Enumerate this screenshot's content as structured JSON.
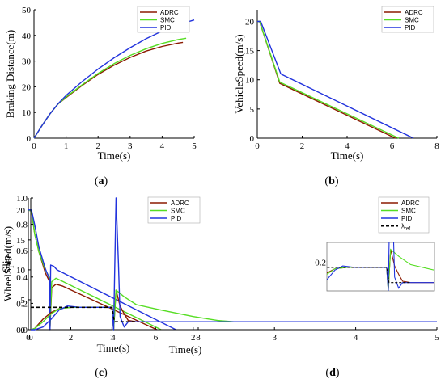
{
  "colors": {
    "ADRC": "#8b1a00",
    "SMC": "#55dd22",
    "PID": "#2233dd",
    "ref": "#000000"
  },
  "chart_data": [
    {
      "panel": "(a)",
      "type": "line",
      "xlabel": "Time(s)",
      "ylabel": "Braking Distance(m)",
      "xlim": [
        0,
        5
      ],
      "ylim": [
        0,
        50
      ],
      "xticks": [
        0,
        1,
        2,
        3,
        4,
        5
      ],
      "yticks": [
        0,
        10,
        20,
        30,
        40,
        50
      ],
      "legend": "top-right",
      "series": [
        {
          "name": "ADRC",
          "color": "#8b1a00",
          "x": [
            0,
            0.25,
            0.5,
            0.75,
            1.0,
            1.5,
            2.0,
            2.5,
            3.0,
            3.5,
            4.0,
            4.5,
            4.65
          ],
          "y": [
            0,
            4.9,
            9.5,
            13.3,
            15.8,
            20.5,
            24.8,
            28.4,
            31.4,
            33.9,
            35.7,
            37.0,
            37.3
          ]
        },
        {
          "name": "SMC",
          "color": "#55dd22",
          "x": [
            0,
            0.25,
            0.5,
            0.75,
            1.0,
            1.5,
            2.0,
            2.5,
            3.0,
            3.5,
            4.0,
            4.5,
            4.75
          ],
          "y": [
            0,
            4.9,
            9.5,
            13.3,
            16.0,
            20.8,
            25.2,
            29.0,
            32.2,
            34.8,
            36.9,
            38.4,
            38.9
          ]
        },
        {
          "name": "PID",
          "color": "#2233dd",
          "x": [
            0,
            0.25,
            0.5,
            0.75,
            1.0,
            1.5,
            2.0,
            2.5,
            3.0,
            3.5,
            4.0,
            4.5,
            5.0
          ],
          "y": [
            0,
            4.9,
            9.5,
            13.4,
            16.6,
            22.0,
            26.9,
            31.3,
            35.2,
            38.7,
            41.7,
            44.2,
            46.0
          ]
        }
      ]
    },
    {
      "panel": "(b)",
      "type": "line",
      "xlabel": "Time(s)",
      "ylabel": "VehicleSpeed(m/s)",
      "xlim": [
        0,
        8
      ],
      "ylim": [
        0,
        22
      ],
      "xticks": [
        0,
        2,
        4,
        6,
        8
      ],
      "yticks": [
        0,
        5,
        10,
        15,
        20
      ],
      "legend": "top-right",
      "series": [
        {
          "name": "ADRC",
          "color": "#8b1a00",
          "x": [
            0,
            0.1,
            1.0,
            6.15
          ],
          "y": [
            20,
            20,
            9.4,
            0
          ]
        },
        {
          "name": "SMC",
          "color": "#55dd22",
          "x": [
            0,
            0.1,
            1.0,
            6.3
          ],
          "y": [
            20,
            20,
            9.6,
            0
          ]
        },
        {
          "name": "PID",
          "color": "#2233dd",
          "x": [
            0,
            0.15,
            1.05,
            1.1,
            6.95
          ],
          "y": [
            20,
            20,
            11.0,
            10.9,
            0
          ]
        }
      ]
    },
    {
      "panel": "(c)",
      "type": "line",
      "xlabel": "Time(s)",
      "ylabel": "WheelSpeed(m/s)",
      "xlim": [
        0,
        8
      ],
      "ylim": [
        0,
        22
      ],
      "xticks": [
        0,
        2,
        4,
        6,
        8
      ],
      "yticks": [
        0,
        5,
        10,
        15,
        20
      ],
      "legend": "top-right",
      "series": [
        {
          "name": "ADRC",
          "color": "#8b1a00",
          "x": [
            0,
            0.15,
            0.3,
            0.5,
            0.8,
            1.0,
            1.02,
            1.1,
            1.3,
            1.6,
            6.05
          ],
          "y": [
            20,
            19.8,
            16,
            13,
            9.5,
            8.0,
            0.3,
            7.0,
            7.6,
            7.3,
            0
          ]
        },
        {
          "name": "SMC",
          "color": "#55dd22",
          "x": [
            0,
            0.15,
            0.3,
            0.5,
            0.8,
            1.0,
            1.02,
            1.1,
            1.3,
            1.6,
            6.25
          ],
          "y": [
            20,
            19.8,
            16,
            13,
            10,
            8.7,
            0.3,
            8.0,
            8.6,
            8.1,
            0
          ]
        },
        {
          "name": "PID",
          "color": "#2233dd",
          "x": [
            0,
            0.15,
            0.3,
            0.5,
            0.8,
            1.0,
            1.02,
            1.05,
            1.2,
            1.35,
            6.95
          ],
          "y": [
            20,
            20,
            17.5,
            13.8,
            10.2,
            8.4,
            0.0,
            10.8,
            10.6,
            10.0,
            0
          ]
        }
      ]
    },
    {
      "panel": "(d)",
      "type": "line",
      "xlabel": "Time(s)",
      "ylabel": "Slip",
      "xlim": [
        0,
        5
      ],
      "ylim": [
        0,
        1.0
      ],
      "xticks": [
        0,
        1,
        2,
        3,
        4,
        5
      ],
      "yticks": [
        0,
        0.2,
        0.4,
        0.6,
        0.8,
        1.0
      ],
      "legend": "top-right",
      "inset_tick": "0.2",
      "series": [
        {
          "name": "ADRC",
          "color": "#8b1a00",
          "x": [
            0,
            0.05,
            0.15,
            0.25,
            0.35,
            0.5,
            1.0,
            1.02,
            1.05,
            1.1,
            1.15,
            1.2,
            1.3,
            1.5,
            2.0,
            5.0
          ],
          "y": [
            0,
            0.01,
            0.08,
            0.13,
            0.16,
            0.17,
            0.17,
            0.0,
            0.3,
            0.18,
            0.12,
            0.07,
            0.06,
            0.06,
            0.06,
            0.06
          ]
        },
        {
          "name": "SMC",
          "color": "#55dd22",
          "x": [
            0,
            0.05,
            0.15,
            0.25,
            0.35,
            0.5,
            1.0,
            1.02,
            1.05,
            1.15,
            1.3,
            1.6,
            2.0,
            2.3,
            2.5,
            5.0
          ],
          "y": [
            0,
            0.01,
            0.06,
            0.12,
            0.16,
            0.17,
            0.17,
            0.0,
            0.3,
            0.25,
            0.19,
            0.15,
            0.1,
            0.07,
            0.06,
            0.06
          ]
        },
        {
          "name": "PID",
          "color": "#2233dd",
          "x": [
            0,
            0.05,
            0.15,
            0.25,
            0.35,
            0.45,
            0.6,
            1.0,
            1.02,
            1.05,
            1.08,
            1.1,
            1.15,
            1.2,
            1.3,
            1.5,
            5.0
          ],
          "y": [
            0,
            0.0,
            0.02,
            0.08,
            0.15,
            0.18,
            0.17,
            0.17,
            0.0,
            1.0,
            0.5,
            0.1,
            0.02,
            0.06,
            0.06,
            0.06,
            0.06
          ]
        },
        {
          "name": "λref",
          "color": "#000000",
          "dashed": true,
          "x": [
            0,
            1.0,
            1.03,
            1.3
          ],
          "y": [
            0.17,
            0.17,
            0.06,
            0.06
          ]
        }
      ]
    }
  ],
  "legend_labels": [
    "ADRC",
    "SMC",
    "PID"
  ],
  "ref_label": {
    "base": "λ",
    "sub": "ref"
  }
}
